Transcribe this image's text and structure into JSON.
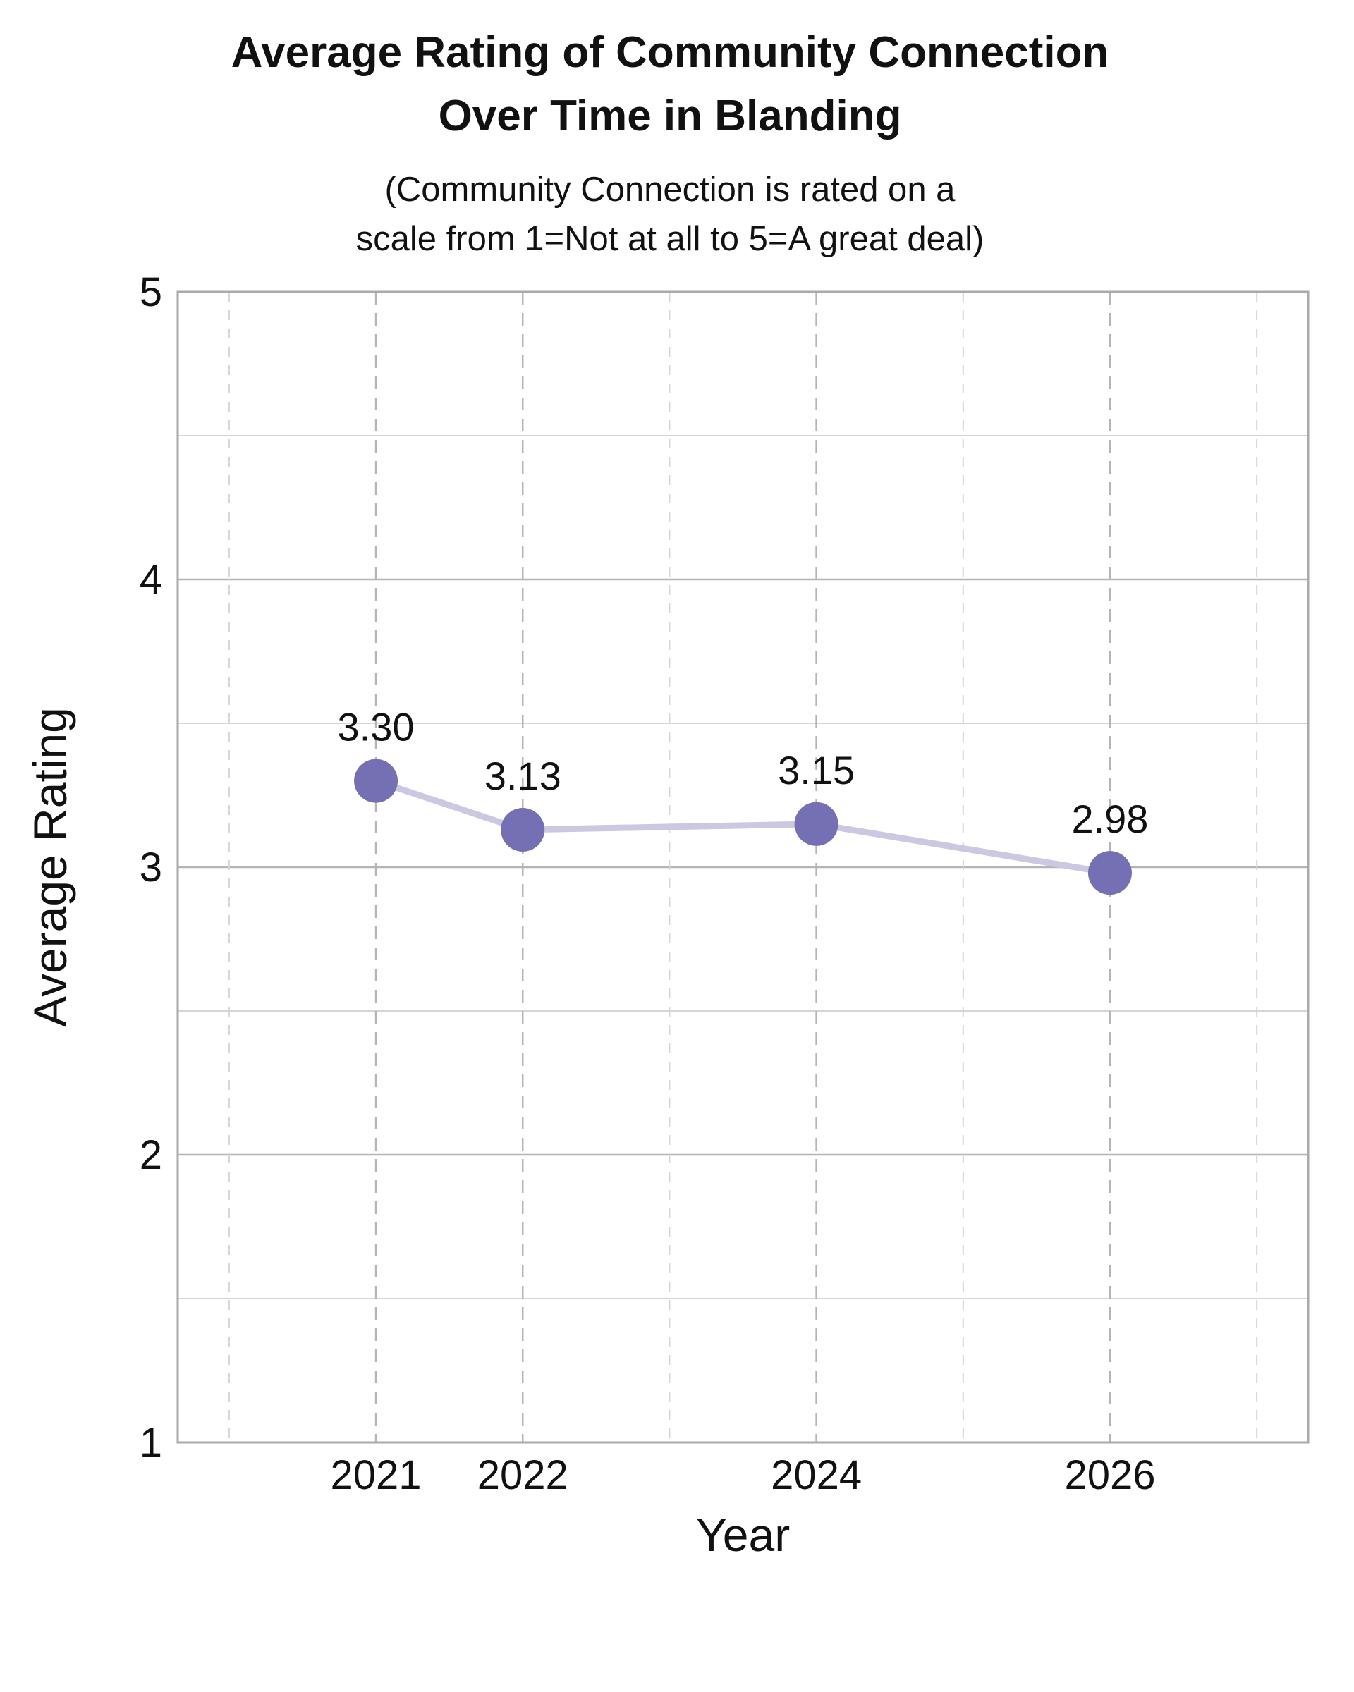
{
  "chart_data": {
    "type": "line",
    "title_lines": [
      "Average Rating of Community Connection",
      "Over Time in Blanding"
    ],
    "subtitle_lines": [
      "(Community Connection is rated on a",
      "scale from 1=Not at all to 5=A great deal)"
    ],
    "xlabel": "Year",
    "ylabel": "Average Rating",
    "x": [
      2021,
      2022,
      2024,
      2026
    ],
    "x_tick_labels": [
      "2021",
      "2022",
      "2024",
      "2026"
    ],
    "series": [
      {
        "values": [
          3.3,
          3.13,
          3.15,
          2.98
        ],
        "labels": [
          "3.30",
          "3.13",
          "3.15",
          "2.98"
        ]
      }
    ],
    "xlim": [
      2019.65,
      2027.35
    ],
    "ylim": [
      1,
      5
    ],
    "y_ticks": [
      1,
      2,
      3,
      4,
      5
    ],
    "y_tick_labels": [
      "1",
      "2",
      "3",
      "4",
      "5"
    ],
    "y_minor_ticks": [
      1.5,
      2.5,
      3.5,
      4.5
    ],
    "x_minor_ticks": [
      2020,
      2023,
      2025,
      2027
    ],
    "grid": true,
    "colors": {
      "marker": "#7570b3",
      "line": "#cbc9e2",
      "grid_major": "#b5b5b5",
      "grid_minor": "#d5d5d5",
      "frame": "#aaaaaa"
    }
  }
}
